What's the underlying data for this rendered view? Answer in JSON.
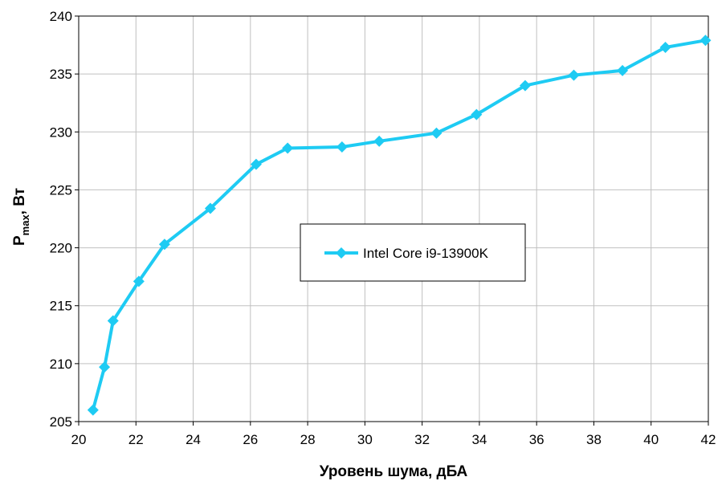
{
  "chart_data": {
    "type": "line",
    "xlabel": "Уровень шума, дБА",
    "ylabel": {
      "main": "P",
      "sub": "max",
      "rest": ", Вт"
    },
    "xlim": [
      20,
      42
    ],
    "ylim": [
      205,
      240
    ],
    "xticks": [
      20,
      22,
      24,
      26,
      28,
      30,
      32,
      34,
      36,
      38,
      40,
      42
    ],
    "yticks": [
      205,
      210,
      215,
      220,
      225,
      230,
      235,
      240
    ],
    "grid": true,
    "legend_position": "center",
    "series": [
      {
        "name": "Intel Core i9-13900K",
        "color": "#1ecbf3",
        "marker": "diamond",
        "x": [
          20.5,
          20.9,
          21.2,
          22.1,
          23.0,
          24.6,
          26.2,
          27.3,
          29.2,
          30.5,
          32.5,
          33.9,
          35.6,
          37.3,
          39.0,
          40.5,
          41.9
        ],
        "y": [
          206.0,
          209.7,
          213.7,
          217.1,
          220.3,
          223.4,
          227.2,
          228.6,
          228.7,
          229.2,
          229.9,
          231.5,
          234.0,
          234.9,
          235.3,
          237.3,
          237.9
        ]
      }
    ]
  }
}
